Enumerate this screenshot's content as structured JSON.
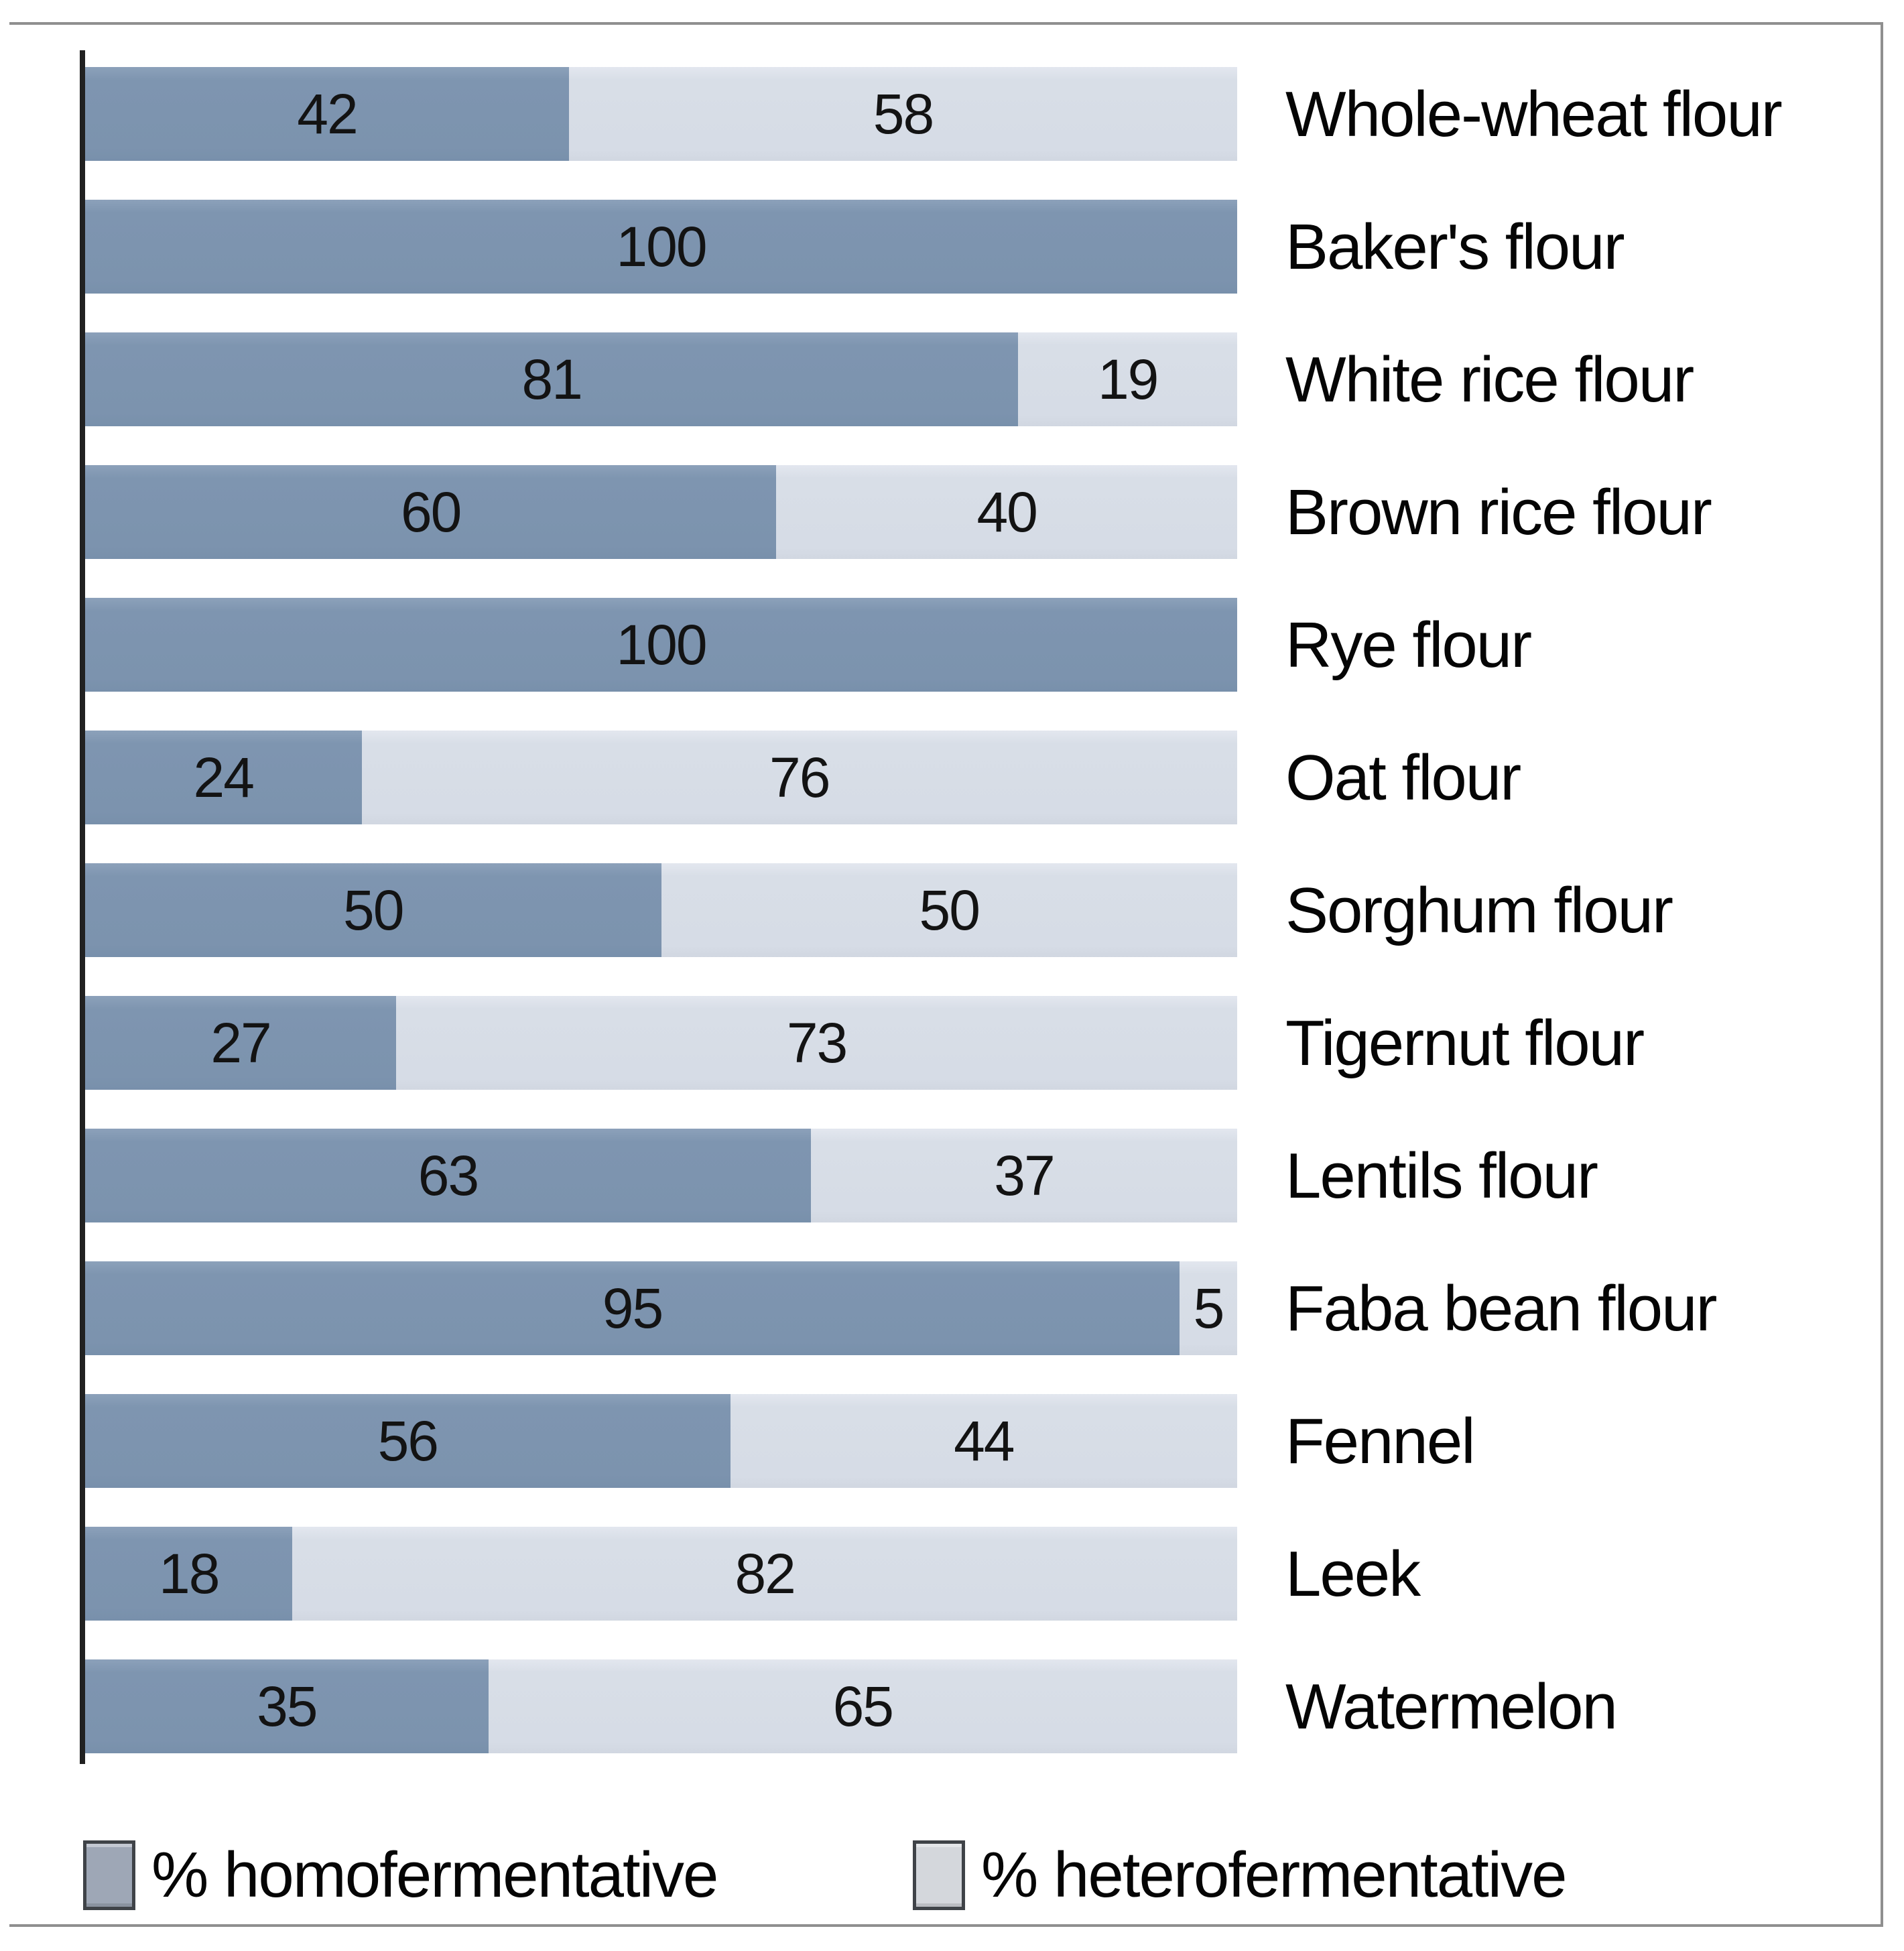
{
  "figure": {
    "title": "",
    "legend": {
      "items": [
        {
          "label": "% homofermentative",
          "swatch_color": "#9EA7B6"
        },
        {
          "label": "% heterofermentative",
          "swatch_color": "#D4D7DC"
        }
      ]
    },
    "colors": {
      "homofermentative_bar": "#7D94AF",
      "heterofermentative_bar": "#D7DDE6",
      "axis_line": "#212121",
      "frame_border": "#8F8F8F",
      "value_text": "#131313"
    }
  },
  "chart_data": {
    "type": "bar",
    "orientation": "horizontal",
    "stacked": true,
    "grid": false,
    "legend_position": "bottom",
    "xlim": [
      0,
      100
    ],
    "xlabel": "",
    "ylabel": "",
    "categories": [
      "Whole-wheat flour",
      "Baker's flour",
      "White rice flour",
      "Brown rice flour",
      "Rye flour",
      "Oat flour",
      "Sorghum flour",
      "Tigernut flour",
      "Lentils flour",
      "Faba bean flour",
      "Fennel",
      "Leek",
      "Watermelon"
    ],
    "series": [
      {
        "name": "% homofermentative",
        "color": "#7D94AF",
        "values": [
          42,
          100,
          81,
          60,
          100,
          24,
          50,
          27,
          63,
          95,
          56,
          18,
          35
        ]
      },
      {
        "name": "% heterofermentative",
        "color": "#D7DDE6",
        "values": [
          58,
          0,
          19,
          40,
          0,
          76,
          50,
          73,
          37,
          5,
          44,
          82,
          65
        ]
      }
    ],
    "value_labels_shown_inside_segments": true
  }
}
